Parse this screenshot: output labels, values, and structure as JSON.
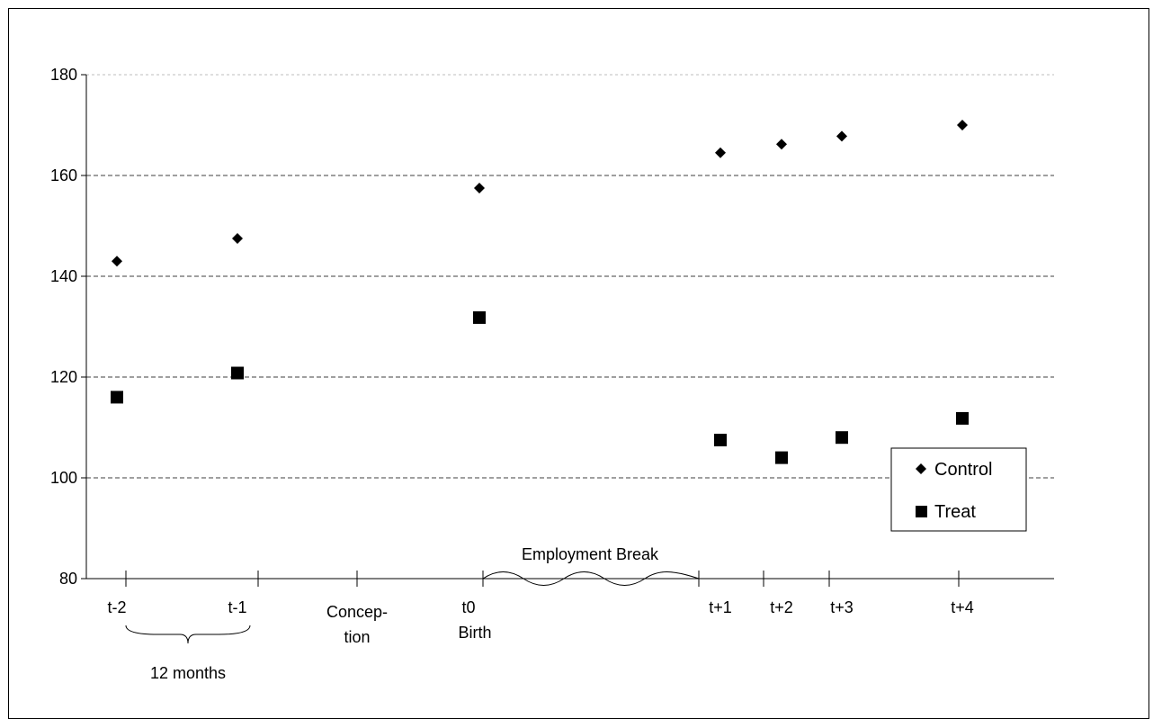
{
  "chart_data": {
    "type": "scatter",
    "ylim": [
      80,
      180
    ],
    "yticks": [
      80,
      100,
      120,
      140,
      160,
      180
    ],
    "grid": true,
    "x_ticks": [
      {
        "x": -2,
        "label": "t-2"
      },
      {
        "x": -1,
        "label": "t-1"
      },
      {
        "x": 0,
        "label": "t0"
      },
      {
        "x": 1,
        "label": "t+1"
      },
      {
        "x": 2,
        "label": "t+2"
      },
      {
        "x": 3,
        "label": "t+3"
      },
      {
        "x": 4,
        "label": "t+4"
      }
    ],
    "x_events": {
      "conception": "Concep-\ntion",
      "birth": "Birth"
    },
    "annotations": {
      "twelve_months": "12 months",
      "employment_break": "Employment Break"
    },
    "series": [
      {
        "name": "Control",
        "marker": "diamond",
        "color": "#000000",
        "points": [
          {
            "x": "t-2",
            "y": 143
          },
          {
            "x": "t-1",
            "y": 147.5
          },
          {
            "x": "t0",
            "y": 157.5
          },
          {
            "x": "t+1",
            "y": 164.5
          },
          {
            "x": "t+2",
            "y": 166.2
          },
          {
            "x": "t+3",
            "y": 167.8
          },
          {
            "x": "t+4",
            "y": 170
          }
        ]
      },
      {
        "name": "Treat",
        "marker": "square",
        "color": "#000000",
        "points": [
          {
            "x": "t-2",
            "y": 116
          },
          {
            "x": "t-1",
            "y": 120.8
          },
          {
            "x": "t0",
            "y": 131.8
          },
          {
            "x": "t+1",
            "y": 107.5
          },
          {
            "x": "t+2",
            "y": 104
          },
          {
            "x": "t+3",
            "y": 108
          },
          {
            "x": "t+4",
            "y": 111.8
          }
        ]
      }
    ],
    "legend_position": "right"
  }
}
